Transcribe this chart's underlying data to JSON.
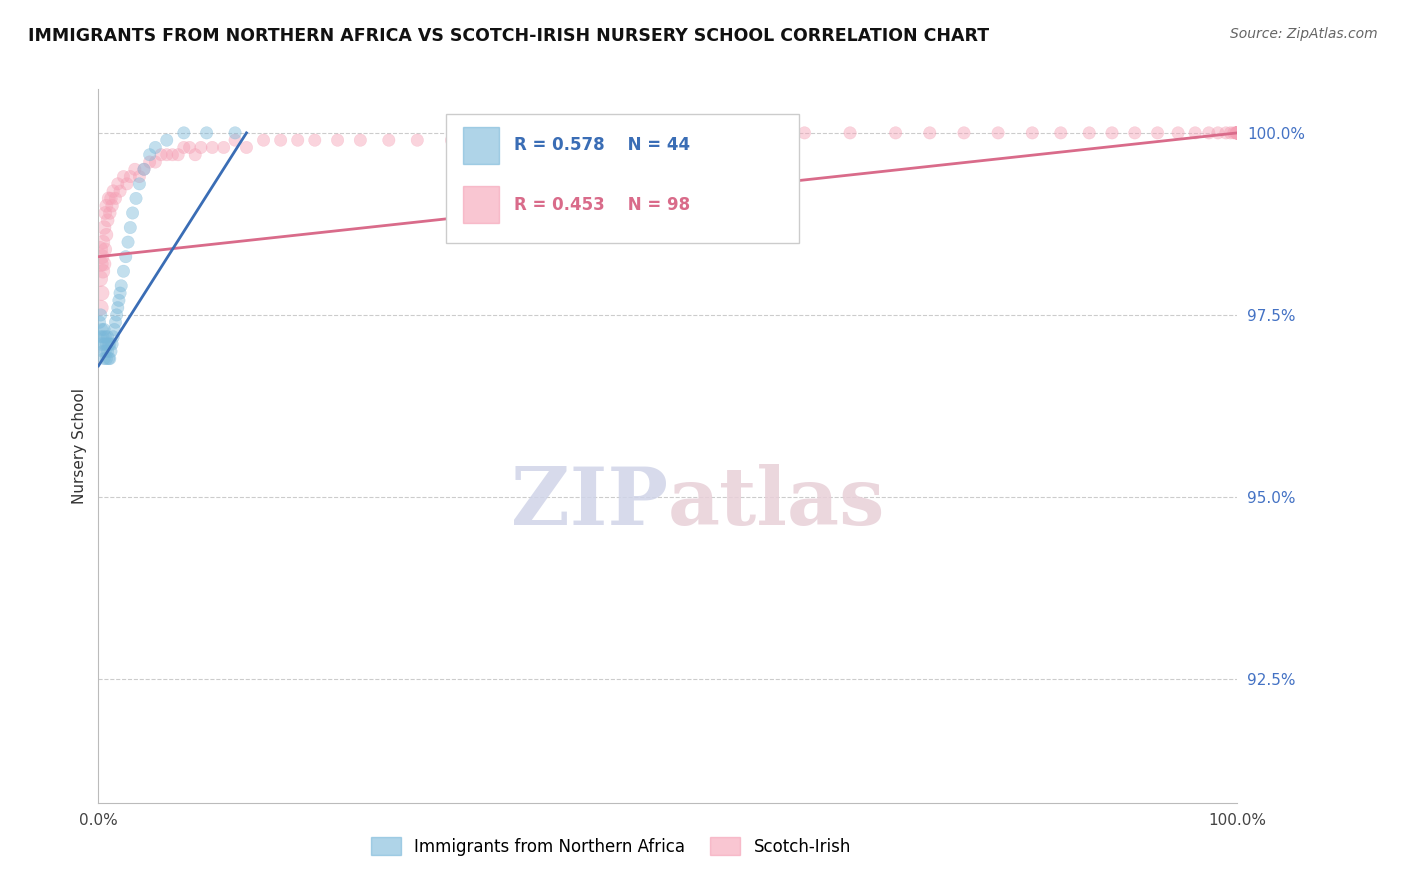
{
  "title": "IMMIGRANTS FROM NORTHERN AFRICA VS SCOTCH-IRISH NURSERY SCHOOL CORRELATION CHART",
  "source": "Source: ZipAtlas.com",
  "ylabel": "Nursery School",
  "xlim": [
    0.0,
    1.0
  ],
  "ylim": [
    0.908,
    1.006
  ],
  "ytick_labels": [
    "92.5%",
    "95.0%",
    "97.5%",
    "100.0%"
  ],
  "ytick_values": [
    0.925,
    0.95,
    0.975,
    1.0
  ],
  "xtick_labels": [
    "0.0%",
    "100.0%"
  ],
  "xtick_values": [
    0.0,
    1.0
  ],
  "watermark_zip": "ZIP",
  "watermark_atlas": "atlas",
  "legend_blue_label": "Immigrants from Northern Africa",
  "legend_pink_label": "Scotch-Irish",
  "blue_R": 0.578,
  "blue_N": 44,
  "pink_R": 0.453,
  "pink_N": 98,
  "blue_color": "#7ab8d9",
  "pink_color": "#f5a0b5",
  "blue_line_color": "#3a6db5",
  "pink_line_color": "#d96b8a",
  "blue_scatter_x": [
    0.001,
    0.002,
    0.002,
    0.003,
    0.003,
    0.004,
    0.004,
    0.005,
    0.005,
    0.005,
    0.006,
    0.006,
    0.007,
    0.007,
    0.008,
    0.008,
    0.009,
    0.009,
    0.01,
    0.01,
    0.011,
    0.012,
    0.013,
    0.014,
    0.015,
    0.016,
    0.017,
    0.018,
    0.019,
    0.02,
    0.022,
    0.024,
    0.026,
    0.028,
    0.03,
    0.033,
    0.036,
    0.04,
    0.045,
    0.05,
    0.06,
    0.075,
    0.095,
    0.12
  ],
  "blue_scatter_y": [
    0.974,
    0.972,
    0.975,
    0.971,
    0.973,
    0.97,
    0.972,
    0.969,
    0.971,
    0.973,
    0.97,
    0.972,
    0.969,
    0.971,
    0.97,
    0.972,
    0.969,
    0.971,
    0.969,
    0.971,
    0.97,
    0.971,
    0.972,
    0.973,
    0.974,
    0.975,
    0.976,
    0.977,
    0.978,
    0.979,
    0.981,
    0.983,
    0.985,
    0.987,
    0.989,
    0.991,
    0.993,
    0.995,
    0.997,
    0.998,
    0.999,
    1.0,
    1.0,
    1.0
  ],
  "blue_scatter_s": [
    80,
    80,
    80,
    90,
    80,
    80,
    80,
    80,
    80,
    80,
    80,
    80,
    80,
    80,
    80,
    80,
    80,
    80,
    80,
    80,
    80,
    80,
    80,
    80,
    80,
    80,
    80,
    80,
    80,
    80,
    80,
    80,
    80,
    80,
    80,
    80,
    80,
    80,
    80,
    80,
    80,
    80,
    80,
    80
  ],
  "pink_scatter_x": [
    0.001,
    0.001,
    0.002,
    0.002,
    0.003,
    0.003,
    0.004,
    0.004,
    0.005,
    0.005,
    0.006,
    0.006,
    0.007,
    0.007,
    0.008,
    0.009,
    0.01,
    0.011,
    0.012,
    0.013,
    0.015,
    0.017,
    0.019,
    0.022,
    0.025,
    0.028,
    0.032,
    0.036,
    0.04,
    0.045,
    0.05,
    0.055,
    0.06,
    0.065,
    0.07,
    0.075,
    0.08,
    0.085,
    0.09,
    0.1,
    0.11,
    0.12,
    0.13,
    0.145,
    0.16,
    0.175,
    0.19,
    0.21,
    0.23,
    0.255,
    0.28,
    0.31,
    0.34,
    0.37,
    0.4,
    0.43,
    0.46,
    0.49,
    0.52,
    0.55,
    0.58,
    0.62,
    0.66,
    0.7,
    0.73,
    0.76,
    0.79,
    0.82,
    0.845,
    0.87,
    0.89,
    0.91,
    0.93,
    0.948,
    0.963,
    0.975,
    0.983,
    0.99,
    0.994,
    0.997,
    0.999,
    0.999,
    1.0,
    1.0,
    1.0,
    1.0,
    1.0,
    1.0,
    1.0,
    1.0,
    1.0,
    1.0,
    1.0,
    1.0,
    1.0,
    1.0,
    1.0,
    1.0
  ],
  "pink_scatter_y": [
    0.98,
    0.984,
    0.976,
    0.982,
    0.978,
    0.983,
    0.981,
    0.985,
    0.982,
    0.987,
    0.984,
    0.989,
    0.986,
    0.99,
    0.988,
    0.991,
    0.989,
    0.991,
    0.99,
    0.992,
    0.991,
    0.993,
    0.992,
    0.994,
    0.993,
    0.994,
    0.995,
    0.994,
    0.995,
    0.996,
    0.996,
    0.997,
    0.997,
    0.997,
    0.997,
    0.998,
    0.998,
    0.997,
    0.998,
    0.998,
    0.998,
    0.999,
    0.998,
    0.999,
    0.999,
    0.999,
    0.999,
    0.999,
    0.999,
    0.999,
    0.999,
    0.999,
    0.999,
    0.999,
    0.999,
    0.999,
    0.999,
    1.0,
    1.0,
    1.0,
    1.0,
    1.0,
    1.0,
    1.0,
    1.0,
    1.0,
    1.0,
    1.0,
    1.0,
    1.0,
    1.0,
    1.0,
    1.0,
    1.0,
    1.0,
    1.0,
    1.0,
    1.0,
    1.0,
    1.0,
    1.0,
    1.0,
    1.0,
    1.0,
    1.0,
    1.0,
    1.0,
    1.0,
    1.0,
    1.0,
    1.0,
    1.0,
    1.0,
    1.0,
    1.0,
    1.0,
    1.0,
    1.0
  ],
  "pink_scatter_s": [
    140,
    140,
    120,
    120,
    110,
    110,
    100,
    100,
    100,
    100,
    90,
    90,
    90,
    90,
    90,
    90,
    85,
    85,
    85,
    85,
    80,
    80,
    80,
    80,
    80,
    80,
    80,
    80,
    80,
    80,
    80,
    80,
    80,
    80,
    80,
    80,
    80,
    80,
    80,
    80,
    80,
    80,
    80,
    80,
    80,
    80,
    80,
    80,
    80,
    80,
    80,
    80,
    80,
    80,
    80,
    80,
    80,
    80,
    80,
    80,
    80,
    80,
    80,
    80,
    80,
    80,
    80,
    80,
    80,
    80,
    80,
    80,
    80,
    80,
    80,
    80,
    80,
    80,
    80,
    80,
    80,
    80,
    80,
    80,
    80,
    80,
    80,
    80,
    80,
    80,
    80,
    80,
    80,
    80,
    80,
    80,
    80,
    80
  ]
}
